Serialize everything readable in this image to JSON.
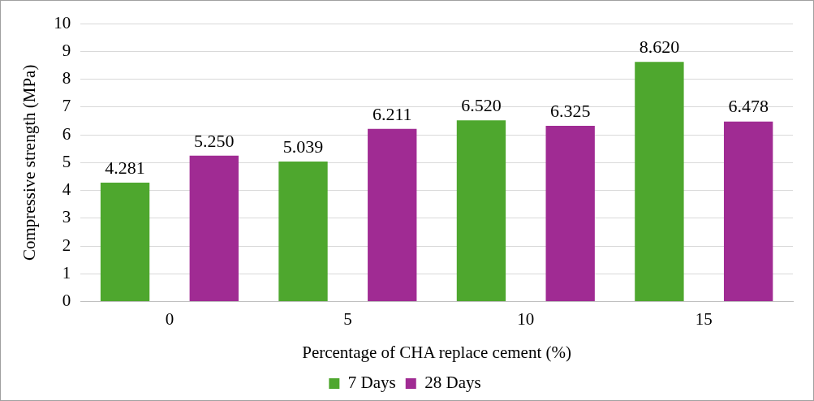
{
  "chart_data": {
    "type": "bar",
    "xlabel": "Percentage of CHA replace cement (%)",
    "ylabel": "Compressive strength (MPa)",
    "categories": [
      "0",
      "5",
      "10",
      "15"
    ],
    "series": [
      {
        "name": "7 Days",
        "color": "#4ea72e",
        "values": [
          4.281,
          5.039,
          6.52,
          8.62
        ],
        "value_labels": [
          "4.281",
          "5.039",
          "6.520",
          "8.620"
        ]
      },
      {
        "name": "28 Days",
        "color": "#a02b93",
        "values": [
          5.25,
          6.211,
          6.325,
          6.478
        ],
        "value_labels": [
          "5.250",
          "6.211",
          "6.325",
          "6.478"
        ]
      }
    ],
    "ylim": [
      0,
      10
    ],
    "yticks": [
      0,
      1,
      2,
      3,
      4,
      5,
      6,
      7,
      8,
      9,
      10
    ],
    "grid": "y",
    "legend": "bottom"
  }
}
